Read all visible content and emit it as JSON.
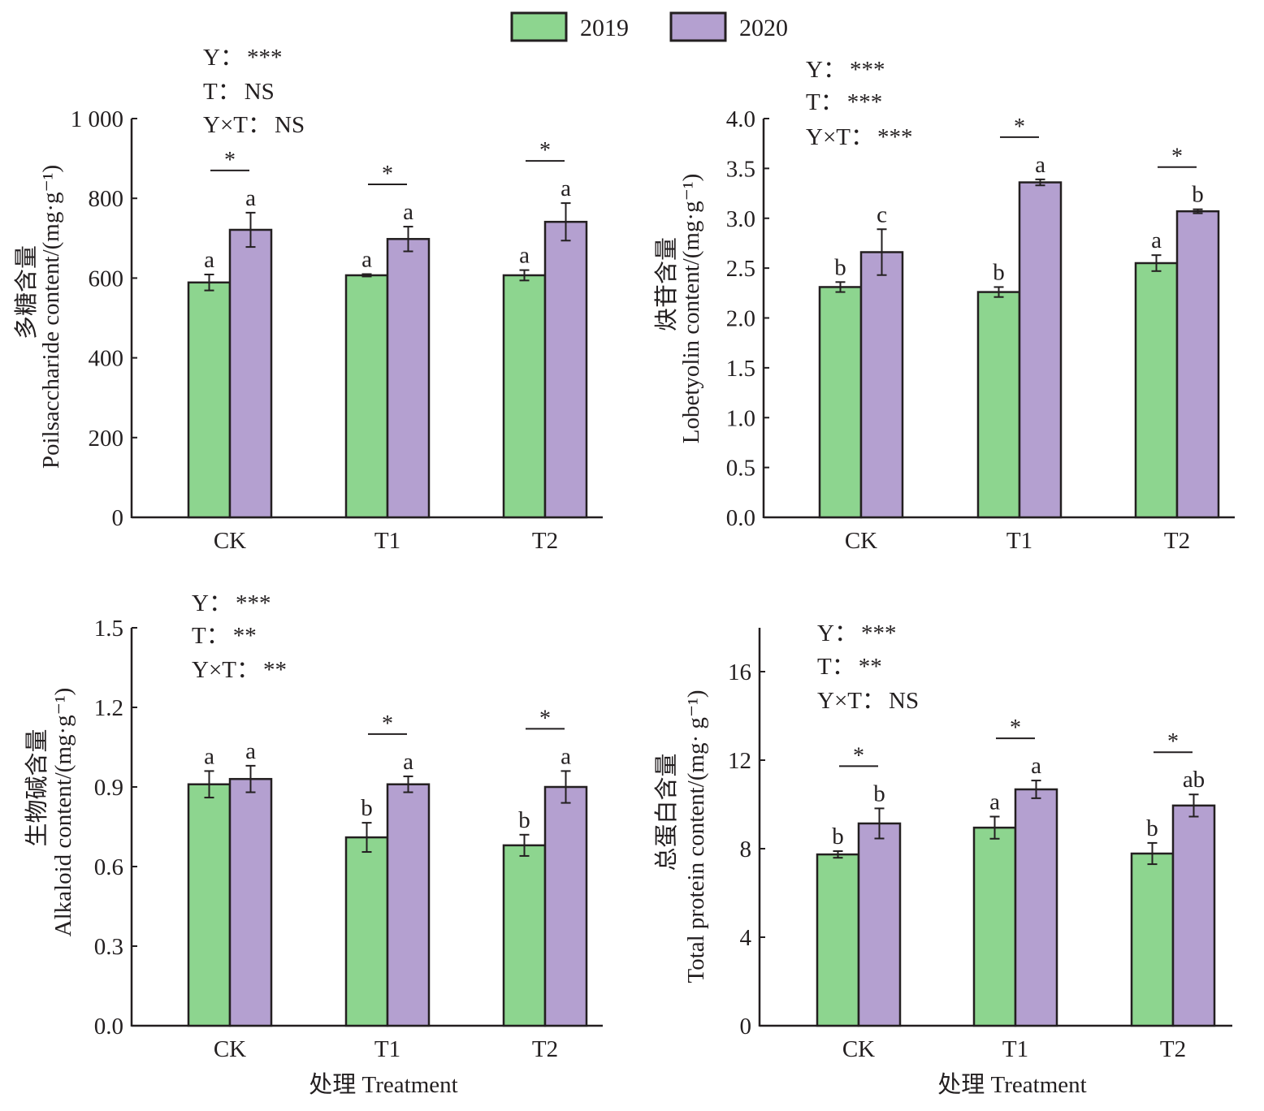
{
  "legend": [
    {
      "label": "2019",
      "color": "#8dd58f"
    },
    {
      "label": "2020",
      "color": "#b4a0d0"
    }
  ],
  "chart_data": [
    {
      "type": "bar",
      "id": "polysaccharide",
      "ylabel_cn": "多糖含量",
      "ylabel": "Poilsaccharide content/(mg·g⁻¹)",
      "xlabel": "",
      "categories": [
        "CK",
        "T1",
        "T2"
      ],
      "ylim": [
        0,
        1000
      ],
      "yticks": [
        0,
        200,
        400,
        600,
        800,
        1000
      ],
      "ytick_labels": [
        "0",
        "200",
        "400",
        "600",
        "800",
        "1 000"
      ],
      "series": [
        {
          "name": "2019",
          "values": [
            589,
            607,
            607
          ],
          "errors": [
            20,
            3,
            13
          ],
          "letters": [
            "a",
            "a",
            "a"
          ]
        },
        {
          "name": "2020",
          "values": [
            721,
            698,
            741
          ],
          "errors": [
            43,
            31,
            47
          ],
          "letters": [
            "a",
            "a",
            "a"
          ]
        }
      ],
      "pair_significance": [
        "*",
        "*",
        "*"
      ],
      "anova": [
        {
          "label": "Y：",
          "value": "***"
        },
        {
          "label": "T：",
          "value": "NS"
        },
        {
          "label": "Y×T：",
          "value": "NS"
        }
      ]
    },
    {
      "type": "bar",
      "id": "lobetyolin",
      "ylabel_cn": "炔苷含量",
      "ylabel": "Lobetyolin content/(mg·g⁻¹)",
      "xlabel": "",
      "categories": [
        "CK",
        "T1",
        "T2"
      ],
      "ylim": [
        0,
        4.0
      ],
      "yticks": [
        0,
        0.5,
        1.0,
        1.5,
        2.0,
        2.5,
        3.0,
        3.5,
        4.0
      ],
      "ytick_labels": [
        "0.0",
        "0.5",
        "1.0",
        "1.5",
        "2.0",
        "2.5",
        "3.0",
        "3.5",
        "4.0"
      ],
      "series": [
        {
          "name": "2019",
          "values": [
            2.31,
            2.26,
            2.55
          ],
          "errors": [
            0.05,
            0.05,
            0.08
          ],
          "letters": [
            "b",
            "b",
            "a"
          ]
        },
        {
          "name": "2020",
          "values": [
            2.66,
            3.36,
            3.07
          ],
          "errors": [
            0.23,
            0.03,
            0.02
          ],
          "letters": [
            "c",
            "a",
            "b"
          ]
        }
      ],
      "pair_significance": [
        "",
        "*",
        "*"
      ],
      "anova": [
        {
          "label": "Y：",
          "value": "***"
        },
        {
          "label": "T：",
          "value": "***"
        },
        {
          "label": "Y×T：",
          "value": "***"
        }
      ]
    },
    {
      "type": "bar",
      "id": "alkaloid",
      "ylabel_cn": "生物碱含量",
      "ylabel": "Alkaloid content/(mg·g⁻¹)",
      "xlabel": "处理  Treatment",
      "categories": [
        "CK",
        "T1",
        "T2"
      ],
      "ylim": [
        0,
        1.5
      ],
      "yticks": [
        0,
        0.3,
        0.6,
        0.9,
        1.2,
        1.5
      ],
      "ytick_labels": [
        "0.0",
        "0.3",
        "0.6",
        "0.9",
        "1.2",
        "1.5"
      ],
      "series": [
        {
          "name": "2019",
          "values": [
            0.91,
            0.71,
            0.68
          ],
          "errors": [
            0.05,
            0.055,
            0.04
          ],
          "letters": [
            "a",
            "b",
            "b"
          ]
        },
        {
          "name": "2020",
          "values": [
            0.93,
            0.91,
            0.9
          ],
          "errors": [
            0.05,
            0.03,
            0.06
          ],
          "letters": [
            "a",
            "a",
            "a"
          ]
        }
      ],
      "pair_significance": [
        "",
        "*",
        "*"
      ],
      "anova": [
        {
          "label": "Y：",
          "value": "***"
        },
        {
          "label": "T：",
          "value": "**"
        },
        {
          "label": "Y×T：",
          "value": "**"
        }
      ]
    },
    {
      "type": "bar",
      "id": "total-protein",
      "ylabel_cn": "总蛋白含量",
      "ylabel": "Total protein content/(mg· g⁻¹)",
      "xlabel": "处理  Treatment",
      "categories": [
        "CK",
        "T1",
        "T2"
      ],
      "ylim": [
        0,
        18
      ],
      "yticks": [
        0,
        4,
        8,
        12,
        16
      ],
      "ytick_labels": [
        "0",
        "4",
        "8",
        "12",
        "16"
      ],
      "series": [
        {
          "name": "2019",
          "values": [
            7.74,
            8.95,
            7.78
          ],
          "errors": [
            0.15,
            0.5,
            0.48
          ],
          "letters": [
            "b",
            "a",
            "b"
          ]
        },
        {
          "name": "2020",
          "values": [
            9.14,
            10.68,
            9.95
          ],
          "errors": [
            0.68,
            0.4,
            0.5
          ],
          "letters": [
            "b",
            "a",
            "ab"
          ]
        }
      ],
      "pair_significance": [
        "*",
        "*",
        "*"
      ],
      "anova": [
        {
          "label": "Y：",
          "value": "***"
        },
        {
          "label": "T：",
          "value": "**"
        },
        {
          "label": "Y×T：",
          "value": "NS"
        }
      ]
    }
  ]
}
